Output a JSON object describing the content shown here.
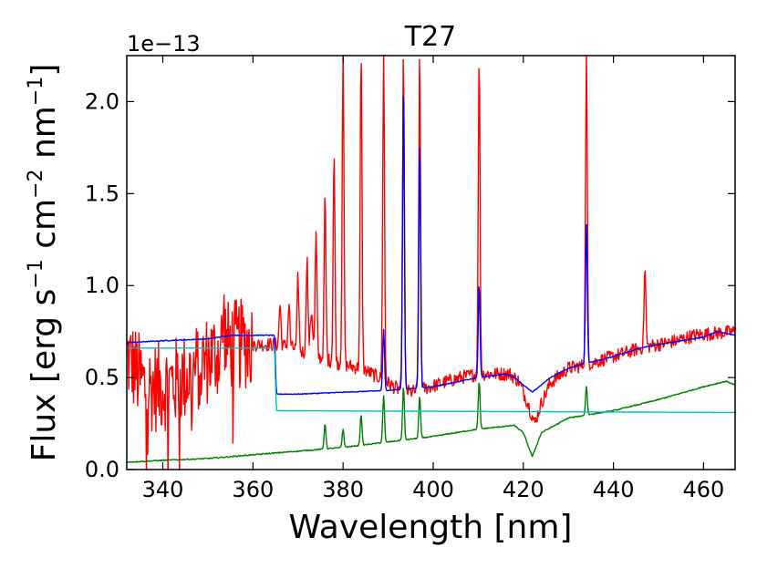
{
  "chart_data": {
    "type": "line",
    "title": "T27",
    "xlabel": "Wavelength [nm]",
    "ylabel": {
      "prefix": "Flux [erg s",
      "exp1": "−1",
      "mid1": " cm",
      "exp2": "−2",
      "mid2": " nm",
      "exp3": "−1",
      "suffix": "]"
    },
    "y_offset_text": "1e−13",
    "xlim": [
      332,
      467
    ],
    "ylim": [
      0.0,
      2.25
    ],
    "x_ticks": [
      340,
      360,
      380,
      400,
      420,
      440,
      460
    ],
    "x_tick_labels": [
      "340",
      "360",
      "380",
      "400",
      "420",
      "440",
      "460"
    ],
    "y_ticks": [
      0.0,
      0.5,
      1.0,
      1.5,
      2.0
    ],
    "y_tick_labels": [
      "0.0",
      "0.5",
      "1.0",
      "1.5",
      "2.0"
    ],
    "colors": {
      "red": "#ff0000",
      "blue": "#0000ff",
      "green": "#008000",
      "cyan": "#00bfbf"
    },
    "series": [
      {
        "name": "red",
        "color": "#ff0000",
        "continuum": [
          [
            332,
            0.62
          ],
          [
            336,
            0.45
          ],
          [
            340,
            0.45
          ],
          [
            345,
            0.5
          ],
          [
            350,
            0.6
          ],
          [
            355,
            0.68
          ],
          [
            360,
            0.68
          ],
          [
            365,
            0.68
          ],
          [
            368,
            0.67
          ],
          [
            372,
            0.63
          ],
          [
            376,
            0.6
          ],
          [
            380,
            0.57
          ],
          [
            384,
            0.55
          ],
          [
            388,
            0.5
          ],
          [
            392,
            0.44
          ],
          [
            395,
            0.42
          ],
          [
            398,
            0.44
          ],
          [
            402,
            0.47
          ],
          [
            406,
            0.5
          ],
          [
            410,
            0.52
          ],
          [
            414,
            0.52
          ],
          [
            417,
            0.52
          ],
          [
            419,
            0.48
          ],
          [
            421,
            0.36
          ],
          [
            422.5,
            0.25
          ],
          [
            424,
            0.36
          ],
          [
            426,
            0.47
          ],
          [
            430,
            0.55
          ],
          [
            434,
            0.57
          ],
          [
            438,
            0.6
          ],
          [
            442,
            0.63
          ],
          [
            446,
            0.66
          ],
          [
            450,
            0.68
          ],
          [
            454,
            0.7
          ],
          [
            458,
            0.73
          ],
          [
            462,
            0.74
          ],
          [
            467,
            0.75
          ]
        ],
        "noise_until": 360,
        "noise_amp": 0.25,
        "lines": [
          [
            366,
            0.9
          ],
          [
            368,
            0.9
          ],
          [
            370,
            1.05
          ],
          [
            372,
            1.15
          ],
          [
            374,
            1.28
          ],
          [
            376,
            1.48
          ],
          [
            378,
            1.72
          ],
          [
            380,
            2.25
          ],
          [
            384,
            2.25
          ],
          [
            389,
            2.25
          ],
          [
            393.4,
            2.25
          ],
          [
            397,
            2.25
          ],
          [
            410.2,
            2.25
          ],
          [
            434,
            2.25
          ],
          [
            447,
            1.09
          ]
        ],
        "feature": [
          [
            353.5,
            0.82
          ],
          [
            373,
            0.86
          ]
        ]
      },
      {
        "name": "blue",
        "color": "#0000ff",
        "continuum": [
          [
            332,
            0.69
          ],
          [
            340,
            0.7
          ],
          [
            350,
            0.71
          ],
          [
            355,
            0.73
          ],
          [
            360,
            0.73
          ],
          [
            364.8,
            0.73
          ],
          [
            365.2,
            0.41
          ],
          [
            370,
            0.41
          ],
          [
            380,
            0.42
          ],
          [
            390,
            0.43
          ],
          [
            400,
            0.45
          ],
          [
            410,
            0.5
          ],
          [
            416,
            0.52
          ],
          [
            418,
            0.5
          ],
          [
            420,
            0.46
          ],
          [
            422,
            0.42
          ],
          [
            424,
            0.46
          ],
          [
            426,
            0.5
          ],
          [
            430,
            0.55
          ],
          [
            434,
            0.58
          ],
          [
            438,
            0.6
          ],
          [
            442,
            0.63
          ],
          [
            446,
            0.66
          ],
          [
            450,
            0.68
          ],
          [
            455,
            0.7
          ],
          [
            460,
            0.72
          ],
          [
            463,
            0.75
          ],
          [
            467,
            0.73
          ]
        ],
        "noise_until": 0,
        "noise_amp": 0.015,
        "lines": [
          [
            389,
            0.76
          ],
          [
            393.4,
            2.08
          ],
          [
            397,
            1.79
          ],
          [
            410.2,
            1.01
          ],
          [
            434,
            1.33
          ]
        ],
        "feature": []
      },
      {
        "name": "green",
        "color": "#008000",
        "continuum": [
          [
            332,
            0.04
          ],
          [
            340,
            0.05
          ],
          [
            350,
            0.06
          ],
          [
            360,
            0.08
          ],
          [
            370,
            0.1
          ],
          [
            380,
            0.12
          ],
          [
            390,
            0.15
          ],
          [
            400,
            0.18
          ],
          [
            410,
            0.22
          ],
          [
            418,
            0.24
          ],
          [
            420,
            0.2
          ],
          [
            422,
            0.07
          ],
          [
            424,
            0.2
          ],
          [
            430,
            0.28
          ],
          [
            440,
            0.32
          ],
          [
            450,
            0.38
          ],
          [
            460,
            0.45
          ],
          [
            465,
            0.48
          ],
          [
            467,
            0.46
          ]
        ],
        "noise_until": 0,
        "noise_amp": 0.02,
        "lines": [
          [
            376,
            0.25
          ],
          [
            380,
            0.22
          ],
          [
            384,
            0.3
          ],
          [
            389,
            0.4
          ],
          [
            393.4,
            0.45
          ],
          [
            397,
            0.4
          ],
          [
            410.2,
            0.48
          ],
          [
            434,
            0.45
          ]
        ],
        "feature": []
      },
      {
        "name": "cyan",
        "color": "#00bfbf",
        "continuum": [
          [
            332,
            0.66
          ],
          [
            364.8,
            0.66
          ],
          [
            365.2,
            0.32
          ],
          [
            467,
            0.31
          ]
        ],
        "noise_until": 0,
        "noise_amp": 0,
        "lines": [],
        "feature": []
      }
    ]
  }
}
